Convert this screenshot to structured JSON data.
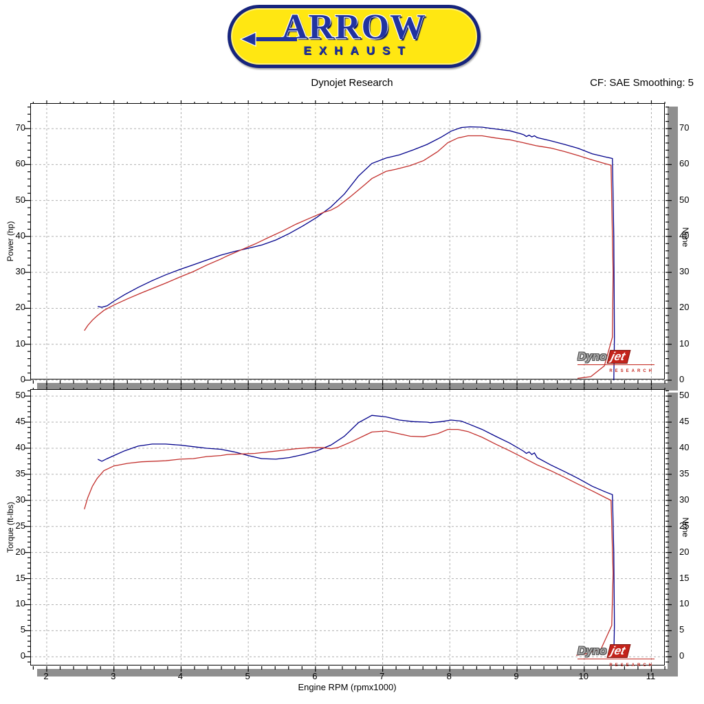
{
  "header": {
    "title": "Dynojet Research",
    "correction": "CF: SAE Smoothing: 5",
    "logo": {
      "brand": "ARROW",
      "sub": "EXHAUST"
    }
  },
  "watermark": {
    "dyno": "Dyno",
    "jet": "jet",
    "research": "RESEARCH"
  },
  "colors": {
    "blue_run": "#00008b",
    "red_run": "#c22e2b",
    "grid": "#b0b0b0",
    "border": "#000000",
    "shadow": "#8f8f8f",
    "logo_yellow": "#ffe712",
    "logo_blue": "#2133a0"
  },
  "chart_data": {
    "type": "line",
    "xaxis": {
      "label": "Engine RPM (rpmx1000)",
      "ticks": [
        2,
        3,
        4,
        5,
        6,
        7,
        8,
        9,
        10,
        11
      ],
      "minor_step": 0.2,
      "xlim": [
        1.765,
        11.21
      ],
      "grid": true
    },
    "charts": [
      {
        "id": "power",
        "ylabel": "Power (hp)",
        "ylabel_right": "None",
        "yticks": [
          0,
          10,
          20,
          30,
          40,
          50,
          60,
          70
        ],
        "y_minor_step": 2,
        "ylim": [
          0,
          76.9
        ],
        "grid": true,
        "series": [
          {
            "name": "blue",
            "color": "#00008b",
            "points": [
              [
                2.76,
                20.5
              ],
              [
                2.82,
                20.3
              ],
              [
                2.9,
                20.7
              ],
              [
                3.0,
                22.0
              ],
              [
                3.16,
                23.8
              ],
              [
                3.36,
                25.8
              ],
              [
                3.57,
                27.7
              ],
              [
                3.77,
                29.3
              ],
              [
                3.98,
                30.8
              ],
              [
                4.18,
                32.1
              ],
              [
                4.38,
                33.4
              ],
              [
                4.59,
                34.8
              ],
              [
                4.79,
                35.8
              ],
              [
                5.0,
                36.7
              ],
              [
                5.2,
                37.6
              ],
              [
                5.41,
                39.0
              ],
              [
                5.61,
                40.8
              ],
              [
                5.82,
                43.0
              ],
              [
                6.02,
                45.3
              ],
              [
                6.23,
                48.2
              ],
              [
                6.43,
                51.8
              ],
              [
                6.64,
                56.8
              ],
              [
                6.84,
                60.3
              ],
              [
                7.05,
                61.8
              ],
              [
                7.25,
                62.7
              ],
              [
                7.46,
                64.1
              ],
              [
                7.66,
                65.6
              ],
              [
                7.87,
                67.6
              ],
              [
                8.02,
                69.3
              ],
              [
                8.17,
                70.3
              ],
              [
                8.3,
                70.5
              ],
              [
                8.48,
                70.4
              ],
              [
                8.68,
                69.9
              ],
              [
                8.89,
                69.4
              ],
              [
                9.05,
                68.6
              ],
              [
                9.1,
                68.3
              ],
              [
                9.14,
                67.8
              ],
              [
                9.18,
                68.2
              ],
              [
                9.22,
                67.7
              ],
              [
                9.26,
                68.0
              ],
              [
                9.3,
                67.5
              ],
              [
                9.5,
                66.6
              ],
              [
                9.71,
                65.6
              ],
              [
                9.91,
                64.5
              ],
              [
                10.12,
                63.0
              ],
              [
                10.32,
                62.1
              ],
              [
                10.42,
                61.7
              ],
              [
                10.44,
                40
              ],
              [
                10.45,
                12
              ],
              [
                10.44,
                0
              ]
            ]
          },
          {
            "name": "red",
            "color": "#c22e2b",
            "points": [
              [
                2.56,
                13.8
              ],
              [
                2.61,
                15.2
              ],
              [
                2.68,
                16.7
              ],
              [
                2.75,
                17.9
              ],
              [
                2.85,
                19.4
              ],
              [
                3.0,
                20.9
              ],
              [
                3.21,
                22.7
              ],
              [
                3.41,
                24.3
              ],
              [
                3.77,
                27.0
              ],
              [
                3.98,
                28.7
              ],
              [
                4.18,
                30.2
              ],
              [
                4.38,
                32.0
              ],
              [
                4.59,
                33.7
              ],
              [
                4.69,
                34.6
              ],
              [
                4.9,
                36.3
              ],
              [
                5.1,
                37.9
              ],
              [
                5.3,
                39.7
              ],
              [
                5.51,
                41.5
              ],
              [
                5.71,
                43.4
              ],
              [
                5.92,
                45.1
              ],
              [
                6.12,
                46.7
              ],
              [
                6.23,
                47.3
              ],
              [
                6.33,
                48.3
              ],
              [
                6.53,
                51.2
              ],
              [
                6.74,
                54.5
              ],
              [
                6.84,
                56.1
              ],
              [
                7.05,
                58.1
              ],
              [
                7.2,
                58.7
              ],
              [
                7.41,
                59.7
              ],
              [
                7.61,
                61.1
              ],
              [
                7.82,
                63.6
              ],
              [
                7.97,
                66.1
              ],
              [
                8.12,
                67.4
              ],
              [
                8.27,
                68.0
              ],
              [
                8.48,
                68.0
              ],
              [
                8.68,
                67.4
              ],
              [
                8.89,
                66.9
              ],
              [
                9.09,
                66.1
              ],
              [
                9.3,
                65.2
              ],
              [
                9.5,
                64.6
              ],
              [
                9.71,
                63.6
              ],
              [
                9.91,
                62.5
              ],
              [
                10.12,
                61.3
              ],
              [
                10.32,
                60.2
              ],
              [
                10.4,
                59.8
              ],
              [
                10.43,
                30
              ],
              [
                10.42,
                12
              ],
              [
                10.3,
                4
              ],
              [
                10.1,
                1
              ],
              [
                9.9,
                0.5
              ]
            ]
          }
        ]
      },
      {
        "id": "torque",
        "ylabel": "Torque (ft-lbs)",
        "ylabel_right": "None",
        "yticks": [
          0,
          5,
          10,
          15,
          20,
          25,
          30,
          35,
          40,
          45,
          50
        ],
        "y_minor_step": 1,
        "ylim": [
          -1.8,
          51.2
        ],
        "grid": true,
        "show_x_labels": true,
        "series": [
          {
            "name": "blue",
            "color": "#00008b",
            "points": [
              [
                2.76,
                37.9
              ],
              [
                2.82,
                37.5
              ],
              [
                2.9,
                38.0
              ],
              [
                3.0,
                38.6
              ],
              [
                3.16,
                39.5
              ],
              [
                3.36,
                40.4
              ],
              [
                3.57,
                40.8
              ],
              [
                3.77,
                40.8
              ],
              [
                3.98,
                40.6
              ],
              [
                4.18,
                40.3
              ],
              [
                4.38,
                40.0
              ],
              [
                4.59,
                39.8
              ],
              [
                4.79,
                39.3
              ],
              [
                5.0,
                38.6
              ],
              [
                5.2,
                38.0
              ],
              [
                5.41,
                37.9
              ],
              [
                5.61,
                38.2
              ],
              [
                5.82,
                38.8
              ],
              [
                6.02,
                39.5
              ],
              [
                6.23,
                40.6
              ],
              [
                6.43,
                42.3
              ],
              [
                6.64,
                44.9
              ],
              [
                6.84,
                46.3
              ],
              [
                7.05,
                46.0
              ],
              [
                7.25,
                45.4
              ],
              [
                7.46,
                45.1
              ],
              [
                7.66,
                45.0
              ],
              [
                7.71,
                44.9
              ],
              [
                7.87,
                45.1
              ],
              [
                8.02,
                45.4
              ],
              [
                8.17,
                45.2
              ],
              [
                8.27,
                44.7
              ],
              [
                8.48,
                43.6
              ],
              [
                8.68,
                42.3
              ],
              [
                8.89,
                41.0
              ],
              [
                9.05,
                39.8
              ],
              [
                9.1,
                39.4
              ],
              [
                9.14,
                39.0
              ],
              [
                9.18,
                39.3
              ],
              [
                9.22,
                38.8
              ],
              [
                9.26,
                39.1
              ],
              [
                9.3,
                38.2
              ],
              [
                9.5,
                36.8
              ],
              [
                9.71,
                35.5
              ],
              [
                9.91,
                34.2
              ],
              [
                10.12,
                32.7
              ],
              [
                10.32,
                31.6
              ],
              [
                10.42,
                31.1
              ],
              [
                10.44,
                20
              ],
              [
                10.45,
                6
              ],
              [
                10.44,
                0
              ]
            ]
          },
          {
            "name": "red",
            "color": "#c22e2b",
            "points": [
              [
                2.56,
                28.3
              ],
              [
                2.61,
                30.5
              ],
              [
                2.68,
                32.7
              ],
              [
                2.75,
                34.2
              ],
              [
                2.85,
                35.7
              ],
              [
                3.0,
                36.6
              ],
              [
                3.21,
                37.1
              ],
              [
                3.41,
                37.4
              ],
              [
                3.77,
                37.6
              ],
              [
                3.98,
                37.9
              ],
              [
                4.18,
                38.0
              ],
              [
                4.38,
                38.4
              ],
              [
                4.59,
                38.6
              ],
              [
                4.69,
                38.8
              ],
              [
                4.9,
                38.9
              ],
              [
                5.1,
                39.0
              ],
              [
                5.3,
                39.3
              ],
              [
                5.51,
                39.6
              ],
              [
                5.71,
                39.9
              ],
              [
                5.92,
                40.1
              ],
              [
                6.12,
                40.1
              ],
              [
                6.23,
                39.9
              ],
              [
                6.33,
                40.1
              ],
              [
                6.53,
                41.2
              ],
              [
                6.74,
                42.5
              ],
              [
                6.84,
                43.1
              ],
              [
                7.05,
                43.3
              ],
              [
                7.2,
                42.9
              ],
              [
                7.41,
                42.3
              ],
              [
                7.61,
                42.2
              ],
              [
                7.82,
                42.8
              ],
              [
                7.97,
                43.6
              ],
              [
                8.12,
                43.6
              ],
              [
                8.27,
                43.2
              ],
              [
                8.48,
                42.1
              ],
              [
                8.68,
                40.8
              ],
              [
                8.89,
                39.5
              ],
              [
                9.09,
                38.2
              ],
              [
                9.3,
                36.8
              ],
              [
                9.5,
                35.7
              ],
              [
                9.71,
                34.4
              ],
              [
                9.91,
                33.1
              ],
              [
                10.12,
                31.8
              ],
              [
                10.32,
                30.5
              ],
              [
                10.4,
                30.0
              ],
              [
                10.43,
                16
              ],
              [
                10.41,
                6
              ],
              [
                10.25,
                1.5
              ],
              [
                10.0,
                0.5
              ],
              [
                9.88,
                0.3
              ]
            ]
          }
        ]
      }
    ]
  }
}
